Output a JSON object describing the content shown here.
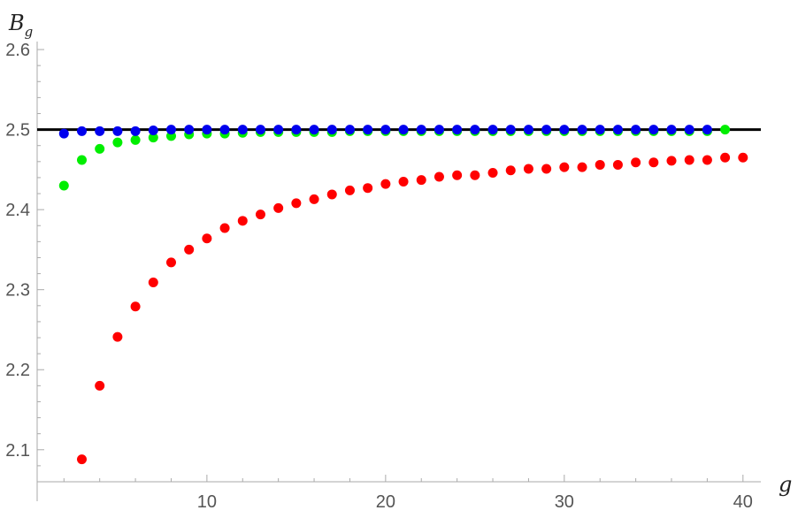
{
  "chart_data": {
    "type": "scatter",
    "xlabel": "g",
    "ylabel_main": "B",
    "ylabel_sub": "g",
    "xlim": [
      0.5,
      41
    ],
    "ylim": [
      2.06,
      2.61
    ],
    "x_ticks": [
      10,
      20,
      30,
      40
    ],
    "x_tick_labels": [
      "10",
      "20",
      "30",
      "40"
    ],
    "y_ticks": [
      2.1,
      2.2,
      2.3,
      2.4,
      2.5,
      2.6
    ],
    "y_tick_labels": [
      "2.1",
      "2.2",
      "2.3",
      "2.4",
      "2.5",
      "2.6"
    ],
    "grid": false,
    "reference_line": {
      "y": 2.5,
      "color": "#000000"
    },
    "series": [
      {
        "color": "#ff0000",
        "x": [
          3,
          4,
          5,
          6,
          7,
          8,
          9,
          10,
          11,
          12,
          13,
          14,
          15,
          16,
          17,
          18,
          19,
          20,
          21,
          22,
          23,
          24,
          25,
          26,
          27,
          28,
          29,
          30,
          31,
          32,
          33,
          34,
          35,
          36,
          37,
          38,
          39,
          40
        ],
        "y": [
          2.088,
          2.18,
          2.241,
          2.279,
          2.309,
          2.334,
          2.35,
          2.364,
          2.377,
          2.386,
          2.394,
          2.402,
          2.408,
          2.413,
          2.419,
          2.424,
          2.427,
          2.432,
          2.435,
          2.437,
          2.441,
          2.443,
          2.443,
          2.446,
          2.449,
          2.451,
          2.451,
          2.453,
          2.453,
          2.456,
          2.456,
          2.459,
          2.459,
          2.461,
          2.462,
          2.462,
          2.465,
          2.465
        ]
      },
      {
        "color": "#00ee00",
        "x": [
          2,
          3,
          4,
          5,
          6,
          7,
          8,
          9,
          10,
          11,
          12,
          13,
          14,
          15,
          16,
          17,
          18,
          19,
          20,
          21,
          22,
          23,
          24,
          25,
          26,
          27,
          28,
          29,
          30,
          31,
          32,
          33,
          34,
          35,
          36,
          37,
          38,
          39
        ],
        "y": [
          2.43,
          2.462,
          2.476,
          2.484,
          2.487,
          2.49,
          2.492,
          2.494,
          2.495,
          2.495,
          2.496,
          2.497,
          2.497,
          2.497,
          2.497,
          2.497,
          2.498,
          2.498,
          2.498,
          2.498,
          2.498,
          2.498,
          2.498,
          2.498,
          2.498,
          2.498,
          2.498,
          2.498,
          2.498,
          2.498,
          2.498,
          2.498,
          2.498,
          2.498,
          2.498,
          2.498,
          2.498,
          2.5
        ]
      },
      {
        "color": "#0000ee",
        "x": [
          2,
          3,
          4,
          5,
          6,
          7,
          8,
          9,
          10,
          11,
          12,
          13,
          14,
          15,
          16,
          17,
          18,
          19,
          20,
          21,
          22,
          23,
          24,
          25,
          26,
          27,
          28,
          29,
          30,
          31,
          32,
          33,
          34,
          35,
          36,
          37,
          38
        ],
        "y": [
          2.495,
          2.498,
          2.498,
          2.498,
          2.498,
          2.499,
          2.5,
          2.5,
          2.5,
          2.5,
          2.5,
          2.5,
          2.5,
          2.5,
          2.5,
          2.5,
          2.5,
          2.5,
          2.5,
          2.5,
          2.5,
          2.5,
          2.5,
          2.5,
          2.5,
          2.5,
          2.5,
          2.5,
          2.5,
          2.5,
          2.5,
          2.5,
          2.5,
          2.5,
          2.5,
          2.5,
          2.5
        ]
      }
    ]
  }
}
